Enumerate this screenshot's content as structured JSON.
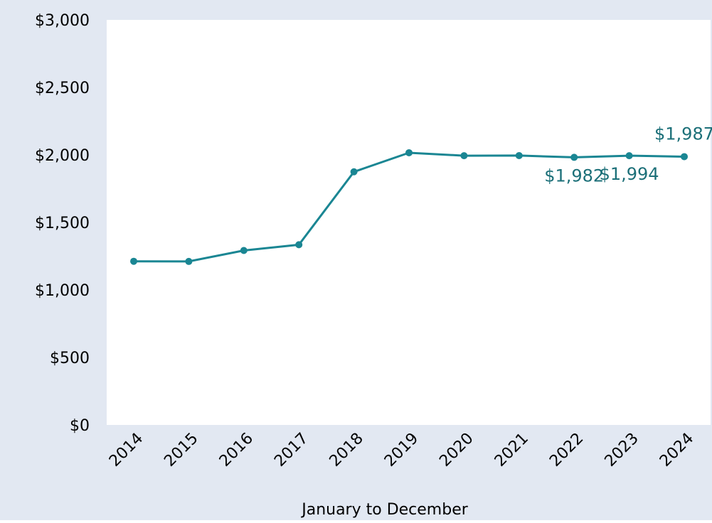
{
  "colors": {
    "background": "#e2e8f2",
    "plot_background": "#ffffff",
    "series": "#1a8693",
    "label": "#1b6f78",
    "text": "#000000"
  },
  "chart_data": {
    "type": "line",
    "title": "",
    "xlabel": "January to December",
    "ylabel": "",
    "x": [
      "2014",
      "2015",
      "2016",
      "2017",
      "2018",
      "2019",
      "2020",
      "2021",
      "2022",
      "2023",
      "2024"
    ],
    "series": [
      {
        "values": [
          1212,
          1211,
          1292,
          1335,
          1875,
          2016,
          1994,
          1995,
          1982,
          1994,
          1987
        ]
      }
    ],
    "ylim": [
      0,
      3000
    ],
    "yticks": [
      0,
      500,
      1000,
      1500,
      2000,
      2500,
      3000
    ],
    "ytick_labels": [
      "$0",
      "$500",
      "$1,000",
      "$1,500",
      "$2,000",
      "$2,500",
      "$3,000"
    ],
    "grid": false,
    "legend": "none",
    "data_labels": [
      {
        "index": 8,
        "text": "$1,982",
        "position": "below"
      },
      {
        "index": 9,
        "text": "$1,994",
        "position": "below"
      },
      {
        "index": 10,
        "text": "$1,987",
        "position": "above"
      }
    ]
  }
}
